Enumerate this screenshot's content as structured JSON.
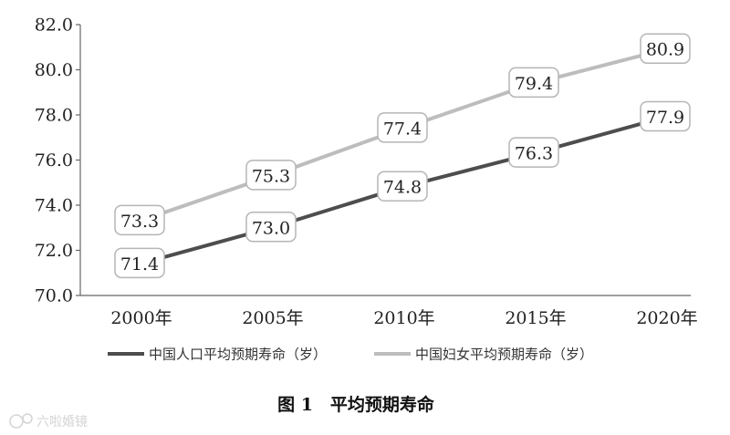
{
  "chart_data": {
    "type": "line",
    "categories": [
      "2000年",
      "2005年",
      "2010年",
      "2015年",
      "2020年"
    ],
    "yticks": [
      "70.0",
      "72.0",
      "74.0",
      "76.0",
      "78.0",
      "80.0",
      "82.0"
    ],
    "ylim": [
      70,
      82
    ],
    "grid": false,
    "legend_position": "bottom",
    "series": [
      {
        "name": "中国人口平均预期寿命（岁）",
        "color": "#4d4d4d",
        "values": [
          71.4,
          73.0,
          74.8,
          76.3,
          77.9
        ],
        "labels": [
          "71.4",
          "73.0",
          "74.8",
          "76.3",
          "77.9"
        ]
      },
      {
        "name": "中国妇女平均预期寿命（岁）",
        "color": "#bdbdbd",
        "values": [
          73.3,
          75.3,
          77.4,
          79.4,
          80.9
        ],
        "labels": [
          "73.3",
          "75.3",
          "77.4",
          "79.4",
          "80.9"
        ]
      }
    ]
  },
  "caption": "图 1　平均预期寿命",
  "watermark": "六啦婚镜"
}
